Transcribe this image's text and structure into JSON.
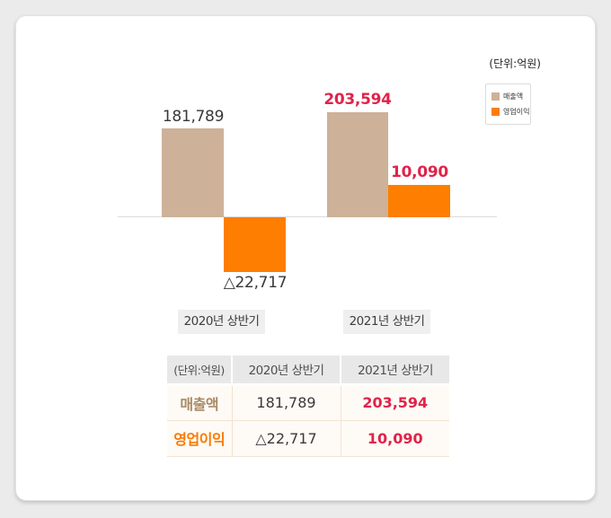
{
  "colors": {
    "revenue": "#CDB198",
    "profit": "#FD7E00",
    "highlight": "#E0234A",
    "revenue_text": "#A98B66",
    "profit_text": "#F77C00"
  },
  "chart": {
    "unit_label": "(단위:억원)",
    "legend": [
      {
        "label": "매출액"
      },
      {
        "label": "영업이익"
      }
    ],
    "groups": [
      {
        "category": "2020년 상반기",
        "revenue_label": "181,789",
        "profit_label": "△22,717"
      },
      {
        "category": "2021년 상반기",
        "revenue_label": "203,594",
        "profit_label": "10,090"
      }
    ]
  },
  "table": {
    "header": [
      "(단위:억원)",
      "2020년 상반기",
      "2021년 상반기"
    ],
    "rows": [
      {
        "label": "매출액",
        "values": [
          "181,789",
          "203,594"
        ]
      },
      {
        "label": "영업이익",
        "values": [
          "△22,717",
          "10,090"
        ]
      }
    ]
  },
  "chart_data": {
    "type": "bar",
    "unit": "(단위:억원)",
    "categories": [
      "2020년 상반기",
      "2021년 상반기"
    ],
    "series": [
      {
        "name": "매출액",
        "values": [
          181789,
          203594
        ],
        "color": "#CDB198"
      },
      {
        "name": "영업이익",
        "values": [
          -22717,
          10090
        ],
        "color": "#FD7E00"
      }
    ],
    "data_labels": {
      "매출액": [
        "181,789",
        "203,594"
      ],
      "영업이익": [
        "△22,717",
        "10,090"
      ]
    },
    "negative_notation": "△ prefix marks negative values",
    "legend_position": "top-right",
    "grid": false,
    "baseline": 0
  }
}
